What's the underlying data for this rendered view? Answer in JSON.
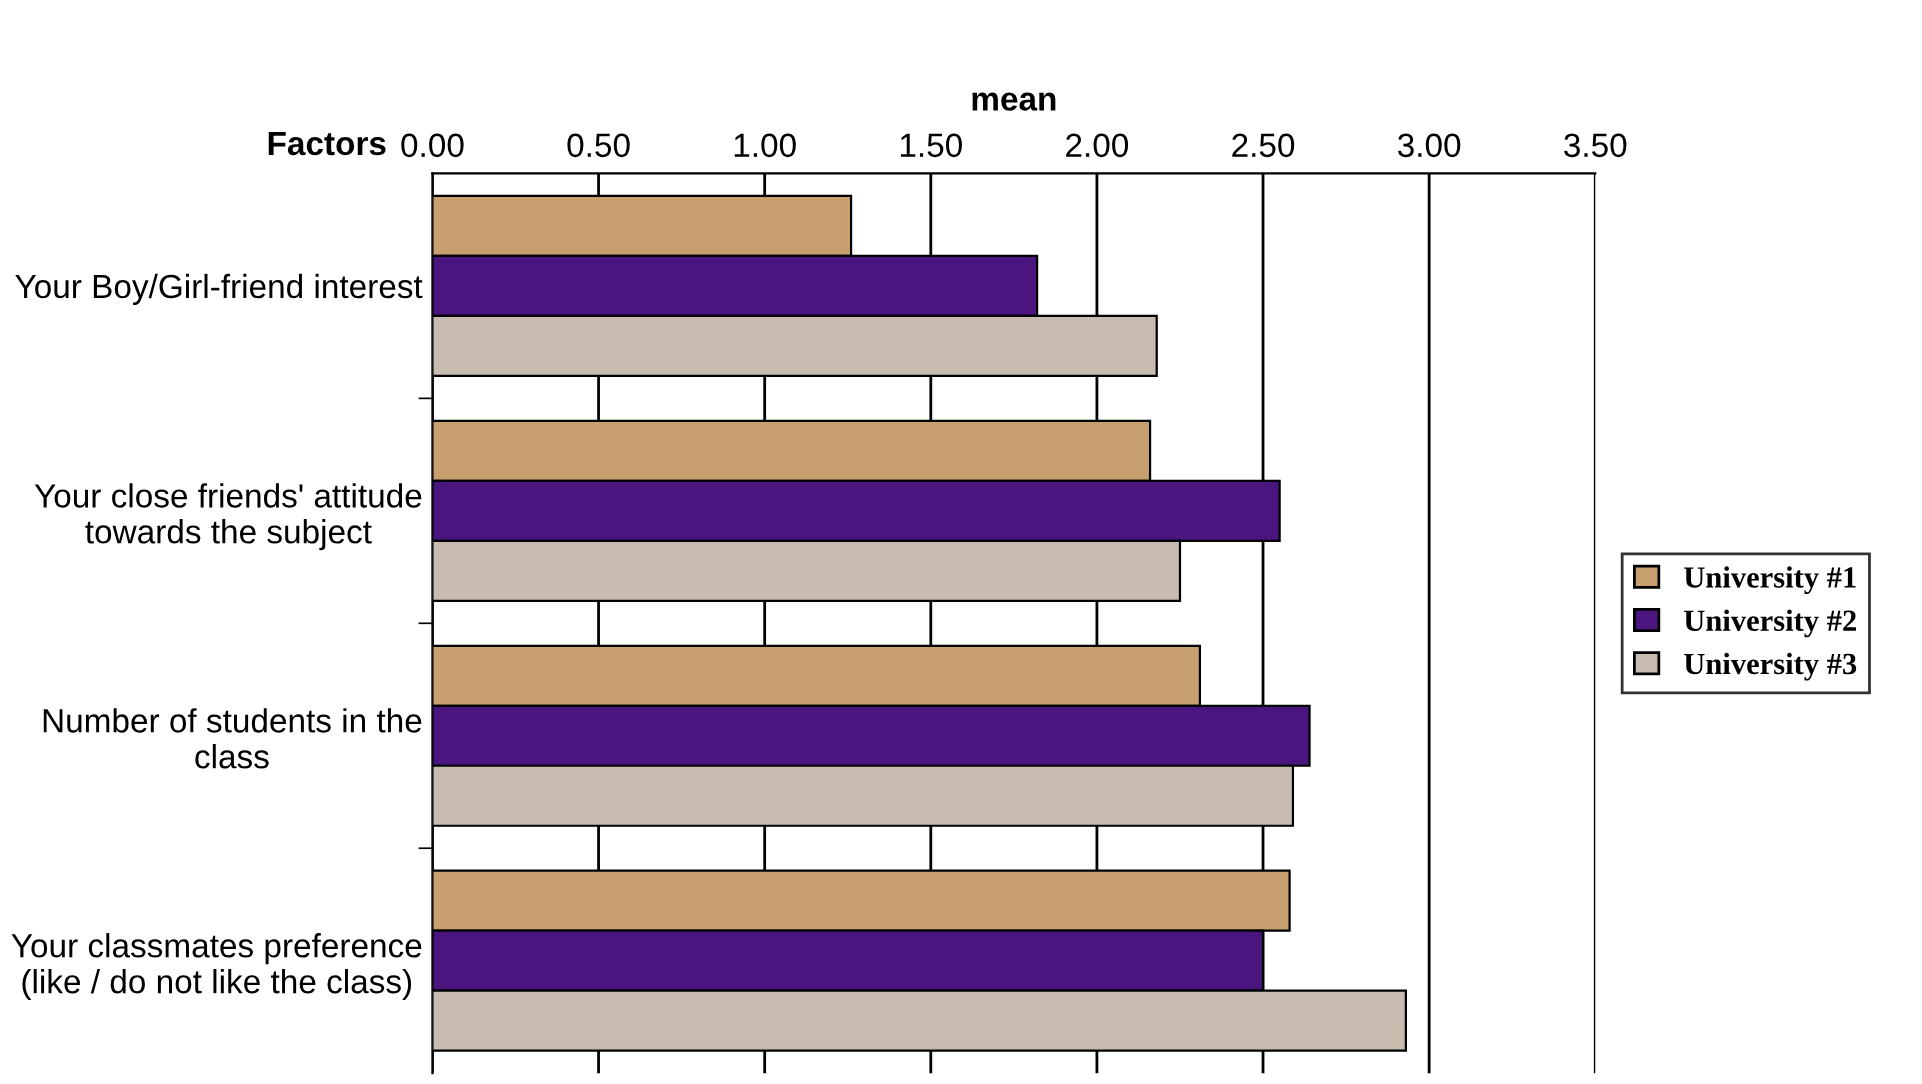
{
  "chart_data": {
    "type": "bar",
    "orientation": "horizontal",
    "xlabel": "mean",
    "ylabel": "Factors",
    "categories": [
      "Your Boy/Girl-friend interest",
      "Your close friends' attitude towards the subject",
      "Number of students in the class",
      "Your classmates preference (like / do not like the class)"
    ],
    "series": [
      {
        "name": "University #1",
        "color": "#c8a070",
        "values": [
          1.26,
          2.16,
          2.31,
          2.58
        ]
      },
      {
        "name": "University #2",
        "color": "#4b1580",
        "values": [
          1.82,
          2.55,
          2.64,
          2.5
        ]
      },
      {
        "name": "University #3",
        "color": "#c8bcb0",
        "values": [
          2.18,
          2.25,
          2.59,
          2.93
        ]
      }
    ],
    "xlim": [
      0,
      3.5
    ],
    "xticks": [
      {
        "value": 0,
        "label": "0.00"
      },
      {
        "value": 0.5,
        "label": "0.50"
      },
      {
        "value": 1,
        "label": "1.00"
      },
      {
        "value": 1.5,
        "label": "1.50"
      },
      {
        "value": 2,
        "label": "2.00"
      },
      {
        "value": 2.5,
        "label": "2.50"
      },
      {
        "value": 3,
        "label": "3.00"
      },
      {
        "value": 3.5,
        "label": "3.50"
      }
    ],
    "grid": "x",
    "legend": "right"
  }
}
